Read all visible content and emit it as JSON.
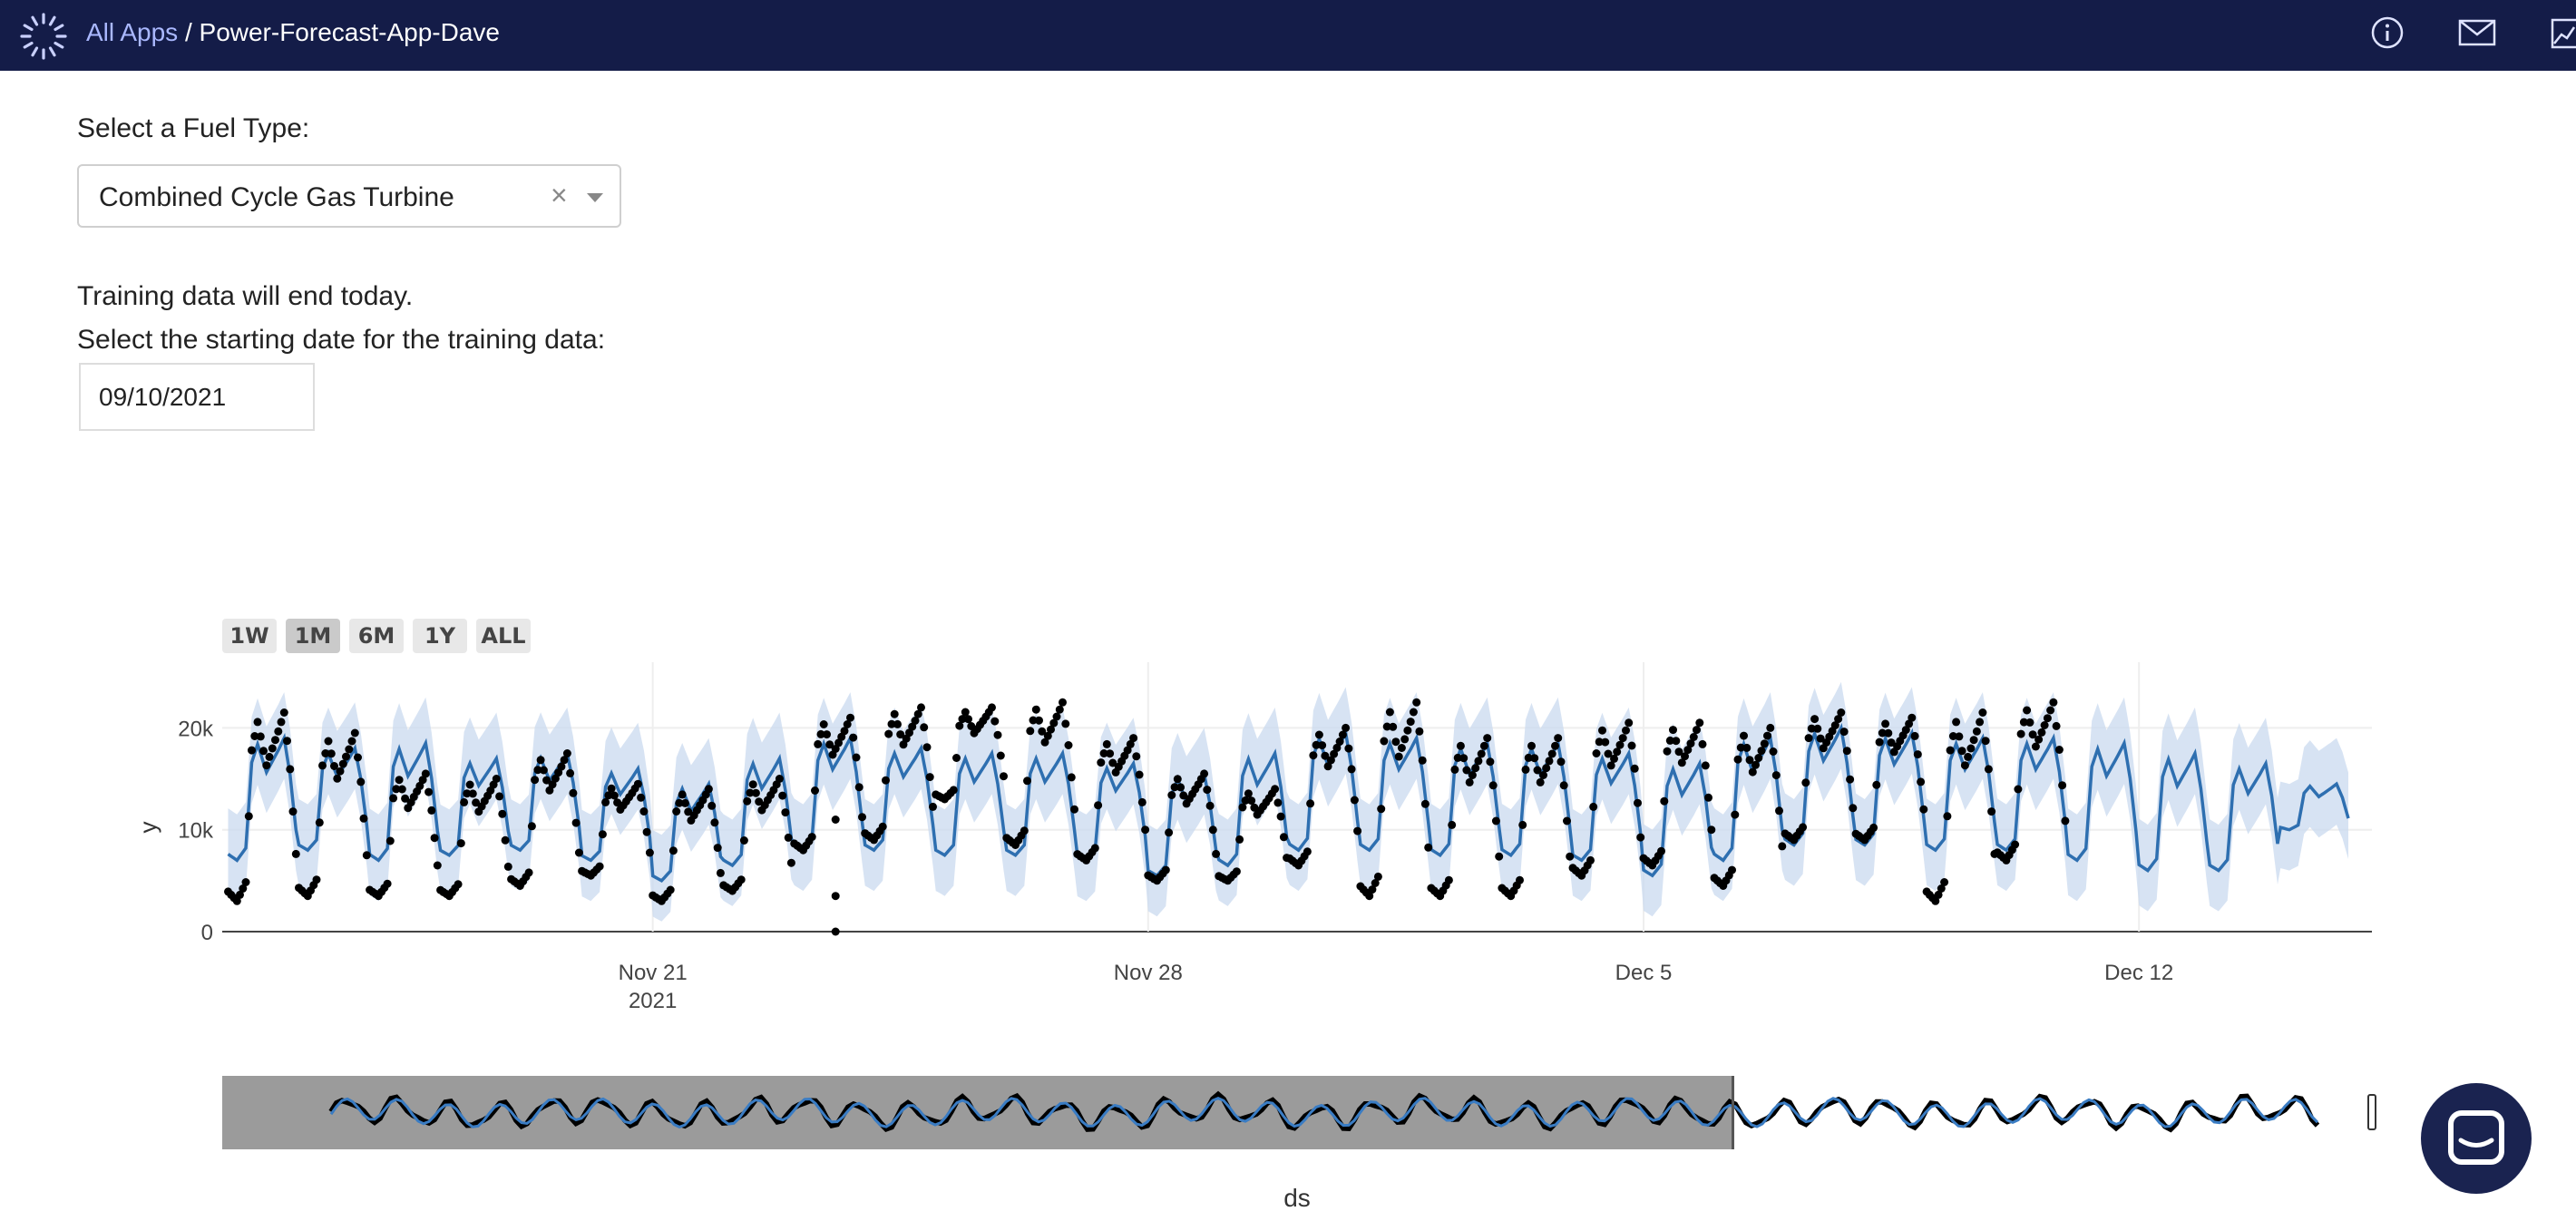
{
  "header": {
    "breadcrumb_link": "All Apps",
    "breadcrumb_sep": " / ",
    "app_name": "Power-Forecast-App-Dave",
    "icons": [
      "info-icon",
      "mail-icon",
      "chart-icon"
    ]
  },
  "controls": {
    "fuel_label": "Select a Fuel Type:",
    "fuel_value": "Combined Cycle Gas Turbine",
    "clear_symbol": "×",
    "training_note": "Training data will end today.",
    "date_label": "Select the starting date for the training data:",
    "date_value": "09/10/2021"
  },
  "range_selector": [
    {
      "label": "1W",
      "active": false
    },
    {
      "label": "1M",
      "active": true
    },
    {
      "label": "6M",
      "active": false
    },
    {
      "label": "1Y",
      "active": false
    },
    {
      "label": "ALL",
      "active": false
    }
  ],
  "chart_data": {
    "type": "line",
    "title": "",
    "xlabel": "ds",
    "ylabel": "y",
    "xlim": [
      "2021-11-14T22:00",
      "2021-12-15T07:00"
    ],
    "ylim": [
      0,
      26000
    ],
    "yticks": [
      {
        "value": 0,
        "label": "0"
      },
      {
        "value": 10000,
        "label": "10k"
      },
      {
        "value": 20000,
        "label": "20k"
      }
    ],
    "xticks": [
      {
        "date": "2021-11-21",
        "label": "Nov 21",
        "sub": "2021"
      },
      {
        "date": "2021-11-28",
        "label": "Nov 28",
        "sub": ""
      },
      {
        "date": "2021-12-05",
        "label": "Dec 5",
        "sub": ""
      },
      {
        "date": "2021-12-12",
        "label": "Dec 12",
        "sub": ""
      }
    ],
    "grid": true,
    "series": [
      {
        "role": "actual",
        "kind": "markers",
        "color": "#000000",
        "daily": [
          {
            "date": "2021-11-15",
            "min": 3000,
            "max": 21500
          },
          {
            "date": "2021-11-16",
            "min": 3500,
            "max": 19500
          },
          {
            "date": "2021-11-17",
            "min": 3500,
            "max": 15500
          },
          {
            "date": "2021-11-18",
            "min": 3500,
            "max": 15000
          },
          {
            "date": "2021-11-19",
            "min": 4500,
            "max": 17500
          },
          {
            "date": "2021-11-20",
            "min": 5500,
            "max": 14500
          },
          {
            "date": "2021-11-21",
            "min": 3000,
            "max": 14000
          },
          {
            "date": "2021-11-22",
            "min": 4000,
            "max": 15000
          },
          {
            "date": "2021-11-23",
            "min": 8000,
            "max": 21000
          },
          {
            "date": "2021-11-24",
            "min": 9000,
            "max": 22000
          },
          {
            "date": "2021-11-25",
            "min": 13000,
            "max": 22000
          },
          {
            "date": "2021-11-26",
            "min": 8500,
            "max": 22500
          },
          {
            "date": "2021-11-27",
            "min": 7000,
            "max": 19000
          },
          {
            "date": "2021-11-28",
            "min": 5000,
            "max": 15500
          },
          {
            "date": "2021-11-29",
            "min": 5000,
            "max": 14000
          },
          {
            "date": "2021-11-30",
            "min": 6500,
            "max": 20000
          },
          {
            "date": "2021-12-01",
            "min": 3500,
            "max": 22500
          },
          {
            "date": "2021-12-02",
            "min": 3500,
            "max": 19000
          },
          {
            "date": "2021-12-03",
            "min": 3500,
            "max": 19000
          },
          {
            "date": "2021-12-04",
            "min": 5500,
            "max": 20500
          },
          {
            "date": "2021-12-05",
            "min": 6500,
            "max": 20500
          },
          {
            "date": "2021-12-06",
            "min": 4500,
            "max": 20000
          },
          {
            "date": "2021-12-07",
            "min": 9000,
            "max": 21500
          },
          {
            "date": "2021-12-08",
            "min": 9000,
            "max": 21000
          },
          {
            "date": "2021-12-09",
            "min": 3000,
            "max": 21500
          },
          {
            "date": "2021-12-10",
            "min": 7000,
            "max": 22500
          }
        ],
        "outliers": [
          {
            "date": "2021-11-23T14:00",
            "value": 3500
          },
          {
            "date": "2021-11-23T14:00",
            "value": 0
          },
          {
            "date": "2021-11-23T14:00",
            "value": 11000
          }
        ]
      },
      {
        "role": "forecast",
        "kind": "line",
        "color": "#2e6fb0",
        "band_color": "#c9d9ef",
        "daily": [
          {
            "date": "2021-11-15",
            "min": 7000,
            "max": 19000
          },
          {
            "date": "2021-11-16",
            "min": 8000,
            "max": 18000
          },
          {
            "date": "2021-11-17",
            "min": 7000,
            "max": 18500
          },
          {
            "date": "2021-11-18",
            "min": 7500,
            "max": 17000
          },
          {
            "date": "2021-11-19",
            "min": 8000,
            "max": 17500
          },
          {
            "date": "2021-11-20",
            "min": 7000,
            "max": 16000
          },
          {
            "date": "2021-11-21",
            "min": 5000,
            "max": 14500
          },
          {
            "date": "2021-11-22",
            "min": 6500,
            "max": 17000
          },
          {
            "date": "2021-11-23",
            "min": 8000,
            "max": 19000
          },
          {
            "date": "2021-11-24",
            "min": 8000,
            "max": 18000
          },
          {
            "date": "2021-11-25",
            "min": 7500,
            "max": 17500
          },
          {
            "date": "2021-11-26",
            "min": 7500,
            "max": 17500
          },
          {
            "date": "2021-11-27",
            "min": 7000,
            "max": 16500
          },
          {
            "date": "2021-11-28",
            "min": 5500,
            "max": 15500
          },
          {
            "date": "2021-11-29",
            "min": 6500,
            "max": 17500
          },
          {
            "date": "2021-11-30",
            "min": 8000,
            "max": 19500
          },
          {
            "date": "2021-12-01",
            "min": 8000,
            "max": 19000
          },
          {
            "date": "2021-12-02",
            "min": 7500,
            "max": 18500
          },
          {
            "date": "2021-12-03",
            "min": 7500,
            "max": 18500
          },
          {
            "date": "2021-12-04",
            "min": 7000,
            "max": 17500
          },
          {
            "date": "2021-12-05",
            "min": 5500,
            "max": 16500
          },
          {
            "date": "2021-12-06",
            "min": 7000,
            "max": 19000
          },
          {
            "date": "2021-12-07",
            "min": 8500,
            "max": 20000
          },
          {
            "date": "2021-12-08",
            "min": 8500,
            "max": 19500
          },
          {
            "date": "2021-12-09",
            "min": 8000,
            "max": 19000
          },
          {
            "date": "2021-12-10",
            "min": 8000,
            "max": 19000
          },
          {
            "date": "2021-12-11",
            "min": 7000,
            "max": 18500
          },
          {
            "date": "2021-12-12",
            "min": 6000,
            "max": 17500
          },
          {
            "date": "2021-12-13",
            "min": 6000,
            "max": 16500
          },
          {
            "date": "2021-12-14",
            "min": 10000,
            "max": 14500
          }
        ]
      }
    ]
  }
}
